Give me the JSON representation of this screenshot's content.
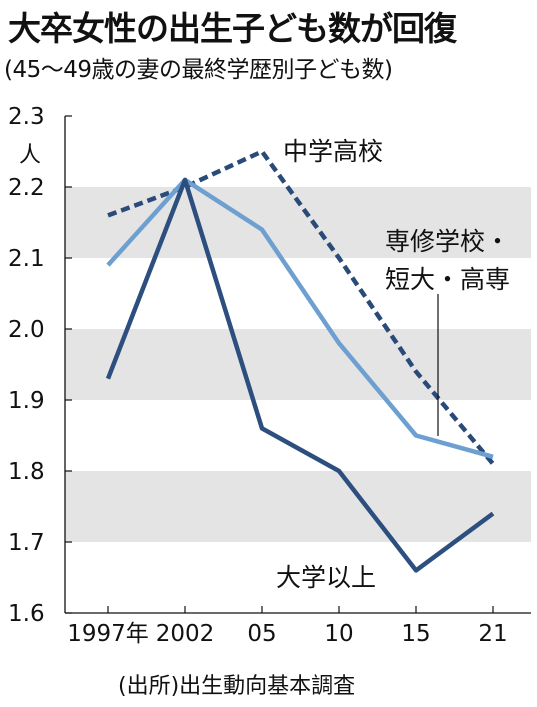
{
  "title": "大卒女性の出生子ども数が回復",
  "subtitle": "(45〜49歳の妻の最終学歴別子ども数)",
  "source": "(出所)出生動向基本調査",
  "chart_data": {
    "type": "line",
    "unit": "人",
    "categories": [
      "1997年",
      "2002",
      "05",
      "10",
      "15",
      "21"
    ],
    "ylim": [
      1.6,
      2.3
    ],
    "yticks": [
      "2.3",
      "2.2",
      "2.1",
      "2.0",
      "1.9",
      "1.8",
      "1.7",
      "1.6"
    ],
    "shaded_bands": [
      [
        2.1,
        2.2
      ],
      [
        1.9,
        2.0
      ],
      [
        1.7,
        1.8
      ]
    ],
    "series": [
      {
        "name": "中学高校",
        "values": [
          2.16,
          2.2,
          2.25,
          2.1,
          1.94,
          1.81
        ],
        "color": "#2a4a7a",
        "style": "dashed"
      },
      {
        "name": "専修学校・短大・高専",
        "values": [
          2.09,
          2.21,
          2.14,
          1.98,
          1.85,
          1.82
        ],
        "color": "#6d9fd0",
        "style": "solid"
      },
      {
        "name": "大学以上",
        "values": [
          1.93,
          2.21,
          1.86,
          1.8,
          1.66,
          1.74
        ],
        "color": "#2d4f7f",
        "style": "solid"
      }
    ],
    "labels": {
      "high_school": "中学高校",
      "vocational_line1": "専修学校・",
      "vocational_line2": "短大・高専",
      "university": "大学以上"
    }
  }
}
